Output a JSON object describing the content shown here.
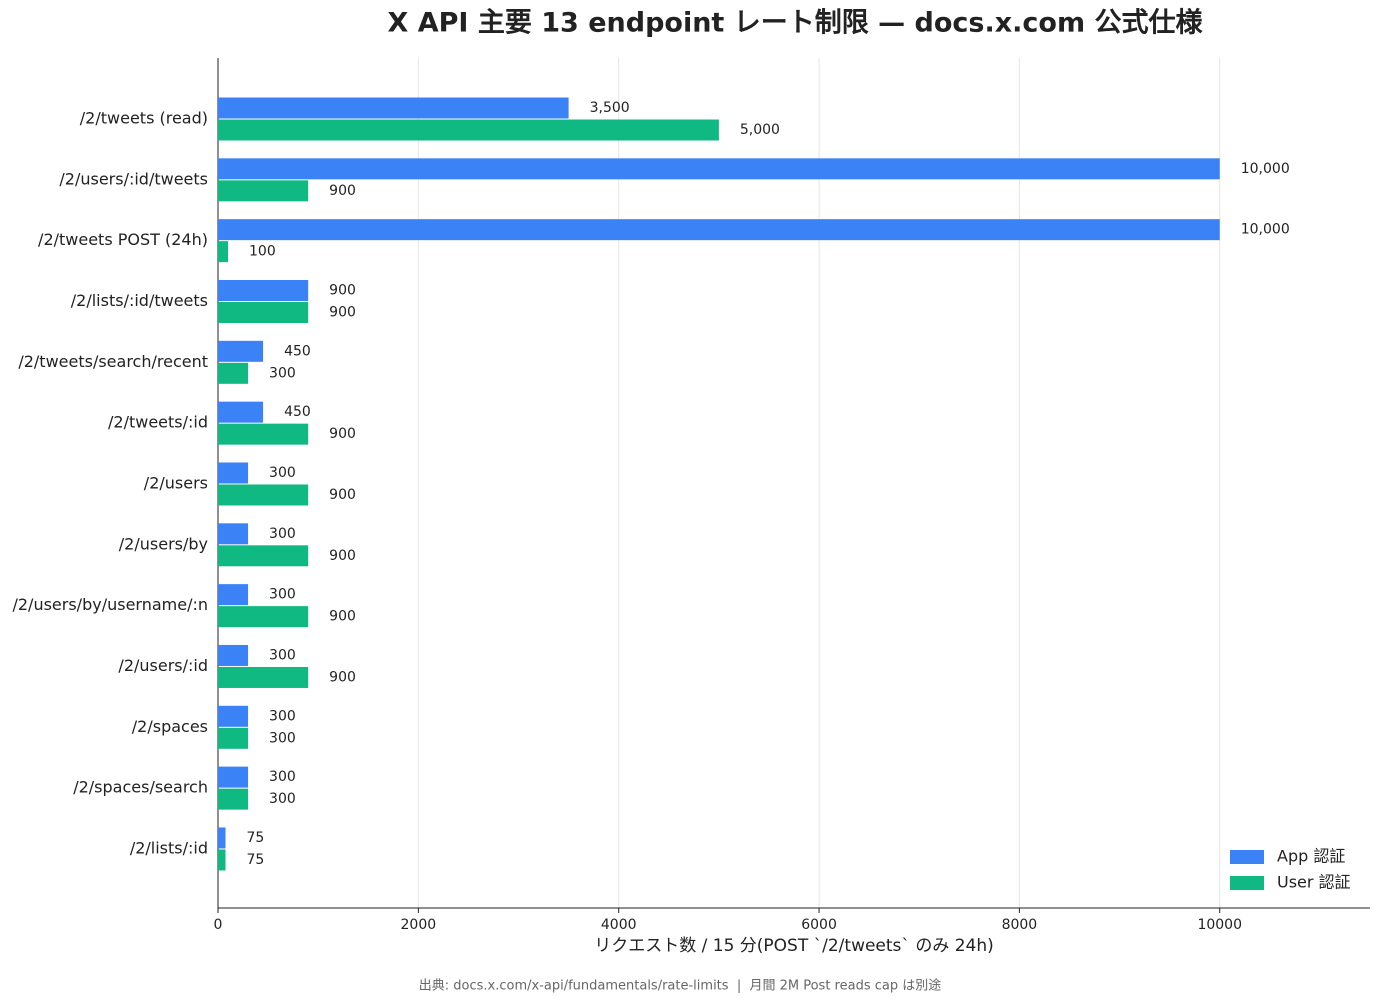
{
  "chart_data": {
    "type": "barh",
    "title": "X API 主要 13 endpoint レート制限 — docs.x.com 公式仕様",
    "xlabel": "リクエスト数 / 15 分(POST `/2/tweets` のみ 24h)",
    "source": "出典: docs.x.com/x-api/fundamentals/rate-limits  |  月間 2M Post reads cap は別途",
    "categories": [
      "/2/tweets (read)",
      "/2/users/:id/tweets",
      "/2/tweets POST (24h)",
      "/2/lists/:id/tweets",
      "/2/tweets/search/recent",
      "/2/tweets/:id",
      "/2/users",
      "/2/users/by",
      "/2/users/by/username/:n",
      "/2/users/:id",
      "/2/spaces",
      "/2/spaces/search",
      "/2/lists/:id"
    ],
    "series": [
      {
        "name": "App 認証",
        "color": "#3b82f6",
        "values": [
          3500,
          10000,
          10000,
          900,
          450,
          450,
          300,
          300,
          300,
          300,
          300,
          300,
          75
        ],
        "value_labels": [
          "3,500",
          "10,000",
          "10,000",
          "900",
          "450",
          "450",
          "300",
          "300",
          "300",
          "300",
          "300",
          "300",
          "75"
        ]
      },
      {
        "name": "User 認証",
        "color": "#10b981",
        "values": [
          5000,
          900,
          100,
          900,
          300,
          900,
          900,
          900,
          900,
          900,
          300,
          300,
          75
        ],
        "value_labels": [
          "5,000",
          "900",
          "100",
          "900",
          "300",
          "900",
          "900",
          "900",
          "900",
          "900",
          "300",
          "300",
          "75"
        ]
      }
    ],
    "xlim": [
      0,
      11500
    ],
    "xticks": [
      0,
      2000,
      4000,
      6000,
      8000,
      10000
    ],
    "grid": true,
    "legend": "lower right"
  }
}
